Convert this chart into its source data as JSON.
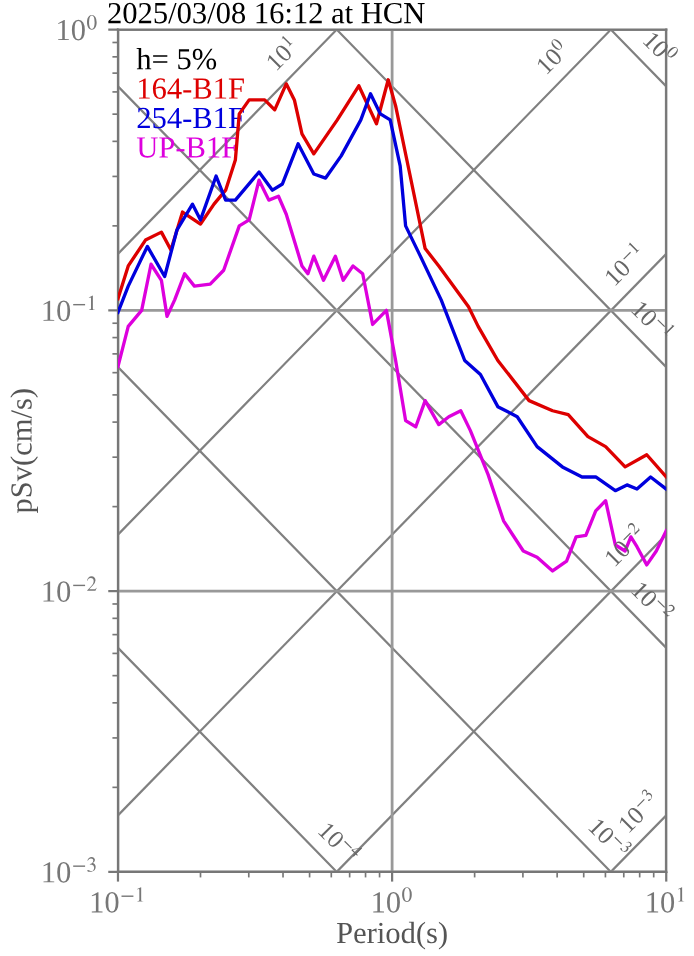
{
  "chart_data": {
    "type": "line",
    "title": "2025/03/08 16:12 at HCN",
    "xlabel": "Period(s)",
    "ylabel": "pSv(cm/s)",
    "legend_title": "h= 5%",
    "legend": "top left",
    "log": "xy",
    "grid": true,
    "marker": "none",
    "line_style": "solid",
    "xlim": [
      0.1,
      10
    ],
    "ylim": [
      0.001,
      1
    ],
    "xticks": [
      {
        "value": 0.1,
        "label": "10$^{−1}$"
      },
      {
        "value": 1,
        "label": "10$^{0}$"
      },
      {
        "value": 10,
        "label": "10$^{1}$"
      }
    ],
    "yticks": [
      {
        "value": 0.001,
        "label": "10$^{−3}$"
      },
      {
        "value": 0.01,
        "label": "10$^{−2}$"
      },
      {
        "value": 0.1,
        "label": "10$^{−1}$"
      },
      {
        "value": 1,
        "label": "10$^{0}$"
      }
    ],
    "series": [
      {
        "color": "#808080",
        "x": [
          0.1,
          0.628
        ],
        "values": [
          0.159,
          1
        ]
      },
      {
        "color": "#808080",
        "x": [
          0.1,
          6.28
        ],
        "values": [
          0.0159,
          1
        ]
      },
      {
        "color": "#808080",
        "x": [
          0.1,
          10
        ],
        "values": [
          0.00159,
          0.159
        ]
      },
      {
        "color": "#808080",
        "x": [
          0.628,
          10
        ],
        "values": [
          0.001,
          0.0159
        ]
      },
      {
        "color": "#808080",
        "x": [
          6.28,
          10
        ],
        "values": [
          0.001,
          0.00159
        ]
      },
      {
        "color": "#808080",
        "x": [
          6.28,
          10
        ],
        "values": [
          1,
          0.628
        ]
      },
      {
        "color": "#808080",
        "x": [
          0.628,
          10
        ],
        "values": [
          1,
          0.0628
        ]
      },
      {
        "color": "#808080",
        "x": [
          0.1,
          10
        ],
        "values": [
          0.628,
          0.00628
        ]
      },
      {
        "color": "#808080",
        "x": [
          0.1,
          6.28
        ],
        "values": [
          0.0628,
          0.001
        ]
      },
      {
        "color": "#808080",
        "x": [
          0.1,
          0.628
        ],
        "values": [
          0.00628,
          0.001
        ]
      },
      {
        "name": "164-B1F",
        "color": "#dd0000",
        "x": [
          0.1,
          0.109,
          0.126,
          0.144,
          0.156,
          0.172,
          0.2,
          0.224,
          0.247,
          0.268,
          0.277,
          0.301,
          0.343,
          0.373,
          0.411,
          0.44,
          0.469,
          0.518,
          0.631,
          0.756,
          0.877,
          0.968,
          1.03,
          1.16,
          1.32,
          1.48,
          1.9,
          2.06,
          2.43,
          3.16,
          3.85,
          4.39,
          5.18,
          6.01,
          7.08,
          8.49,
          10
        ],
        "values": [
          0.11,
          0.144,
          0.178,
          0.19,
          0.164,
          0.224,
          0.203,
          0.239,
          0.268,
          0.343,
          0.501,
          0.562,
          0.562,
          0.518,
          0.641,
          0.562,
          0.425,
          0.361,
          0.477,
          0.631,
          0.462,
          0.663,
          0.535,
          0.306,
          0.166,
          0.144,
          0.103,
          0.0877,
          0.0663,
          0.0477,
          0.0439,
          0.0425,
          0.0355,
          0.0327,
          0.0277,
          0.0306,
          0.0255
        ]
      },
      {
        "name": "254-B1F",
        "color": "#0000dd",
        "x": [
          0.1,
          0.109,
          0.128,
          0.148,
          0.164,
          0.187,
          0.2,
          0.228,
          0.247,
          0.268,
          0.327,
          0.366,
          0.398,
          0.454,
          0.518,
          0.572,
          0.652,
          0.769,
          0.834,
          0.906,
          0.984,
          1.07,
          1.12,
          1.26,
          1.51,
          1.84,
          2.1,
          2.43,
          2.86,
          3.38,
          4.18,
          4.93,
          5.53,
          6.52,
          7.19,
          7.82,
          8.77,
          10
        ],
        "values": [
          0.0984,
          0.122,
          0.169,
          0.132,
          0.193,
          0.239,
          0.21,
          0.301,
          0.247,
          0.247,
          0.311,
          0.268,
          0.282,
          0.392,
          0.306,
          0.296,
          0.355,
          0.477,
          0.591,
          0.501,
          0.477,
          0.327,
          0.2,
          0.158,
          0.109,
          0.0663,
          0.0591,
          0.0454,
          0.0418,
          0.0327,
          0.0277,
          0.0255,
          0.0255,
          0.0228,
          0.0239,
          0.0231,
          0.0255,
          0.0231
        ]
      },
      {
        "name": "UP-B1F",
        "color": "#dd00dd",
        "x": [
          0.1,
          0.109,
          0.122,
          0.132,
          0.144,
          0.151,
          0.161,
          0.175,
          0.19,
          0.217,
          0.243,
          0.277,
          0.301,
          0.327,
          0.355,
          0.385,
          0.411,
          0.469,
          0.493,
          0.518,
          0.562,
          0.621,
          0.663,
          0.72,
          0.781,
          0.849,
          0.953,
          1.03,
          1.12,
          1.22,
          1.32,
          1.48,
          1.61,
          1.78,
          1.93,
          2.24,
          2.55,
          3.01,
          3.38,
          3.85,
          4.33,
          4.69,
          5.09,
          5.53,
          6.01,
          6.52,
          7.08,
          7.43,
          7.82,
          8.49,
          9.2,
          10
        ],
        "values": [
          0.0631,
          0.0877,
          0.1,
          0.146,
          0.128,
          0.0952,
          0.109,
          0.135,
          0.122,
          0.124,
          0.139,
          0.2,
          0.21,
          0.291,
          0.247,
          0.255,
          0.22,
          0.144,
          0.135,
          0.156,
          0.128,
          0.156,
          0.128,
          0.144,
          0.135,
          0.0891,
          0.1,
          0.0663,
          0.0405,
          0.0385,
          0.0477,
          0.0392,
          0.0418,
          0.0439,
          0.0373,
          0.026,
          0.0178,
          0.0139,
          0.0132,
          0.0118,
          0.0128,
          0.0156,
          0.0158,
          0.0193,
          0.021,
          0.0146,
          0.0139,
          0.0156,
          0.0144,
          0.0124,
          0.0139,
          0.0164
        ]
      }
    ],
    "annotations": [
      {
        "text": "10$^{1}$",
        "x": 0.454,
        "y": 0.722
      },
      {
        "text": "10$^{0}$",
        "x": 4.39,
        "y": 0.7
      },
      {
        "text": "10$^{−1}$",
        "x": 8.07,
        "y": 0.128
      },
      {
        "text": "10$^{−2}$",
        "x": 8.07,
        "y": 0.0128
      },
      {
        "text": "10$^{−3}$",
        "x": 9.06,
        "y": 0.00144
      },
      {
        "text": "10$^{0}$",
        "x": 8.3,
        "y": 0.757
      },
      {
        "text": "10$^{−1}$",
        "x": 7.8,
        "y": 0.0805
      },
      {
        "text": "10$^{−2}$",
        "x": 7.8,
        "y": 0.00805
      },
      {
        "text": "10$^{−3}$",
        "x": 5.44,
        "y": 0.001155
      },
      {
        "text": "10$^{−4}$",
        "x": 0.562,
        "y": 0.001118
      }
    ]
  }
}
